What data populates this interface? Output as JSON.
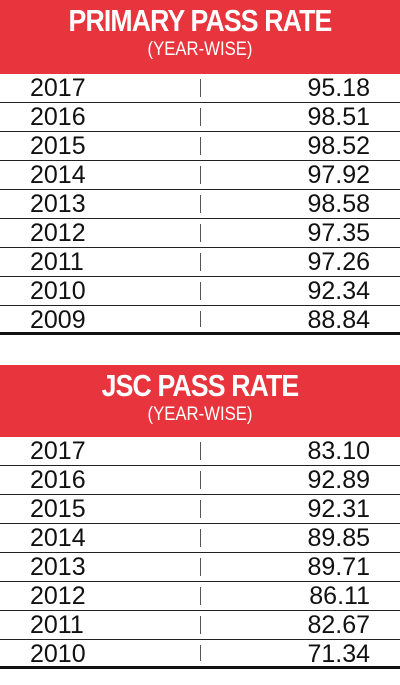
{
  "chart_data": [
    {
      "type": "table",
      "title": "PRIMARY PASS RATE",
      "subtitle": "(YEAR-WISE)",
      "rows": [
        {
          "year": "2017",
          "value": "95.18"
        },
        {
          "year": "2016",
          "value": "98.51"
        },
        {
          "year": "2015",
          "value": "98.52"
        },
        {
          "year": "2014",
          "value": "97.92"
        },
        {
          "year": "2013",
          "value": "98.58"
        },
        {
          "year": "2012",
          "value": "97.35"
        },
        {
          "year": "2011",
          "value": "97.26"
        },
        {
          "year": "2010",
          "value": "92.34"
        },
        {
          "year": "2009",
          "value": "88.84"
        }
      ]
    },
    {
      "type": "table",
      "title": "JSC PASS RATE",
      "subtitle": "(YEAR-WISE)",
      "rows": [
        {
          "year": "2017",
          "value": "83.10"
        },
        {
          "year": "2016",
          "value": "92.89"
        },
        {
          "year": "2015",
          "value": "92.31"
        },
        {
          "year": "2014",
          "value": "89.85"
        },
        {
          "year": "2013",
          "value": "89.71"
        },
        {
          "year": "2012",
          "value": "86.11"
        },
        {
          "year": "2011",
          "value": "82.67"
        },
        {
          "year": "2010",
          "value": "71.34"
        }
      ]
    }
  ],
  "colors": {
    "header_bg": "#e8343c",
    "header_text": "#ffffff",
    "text": "#111111"
  }
}
